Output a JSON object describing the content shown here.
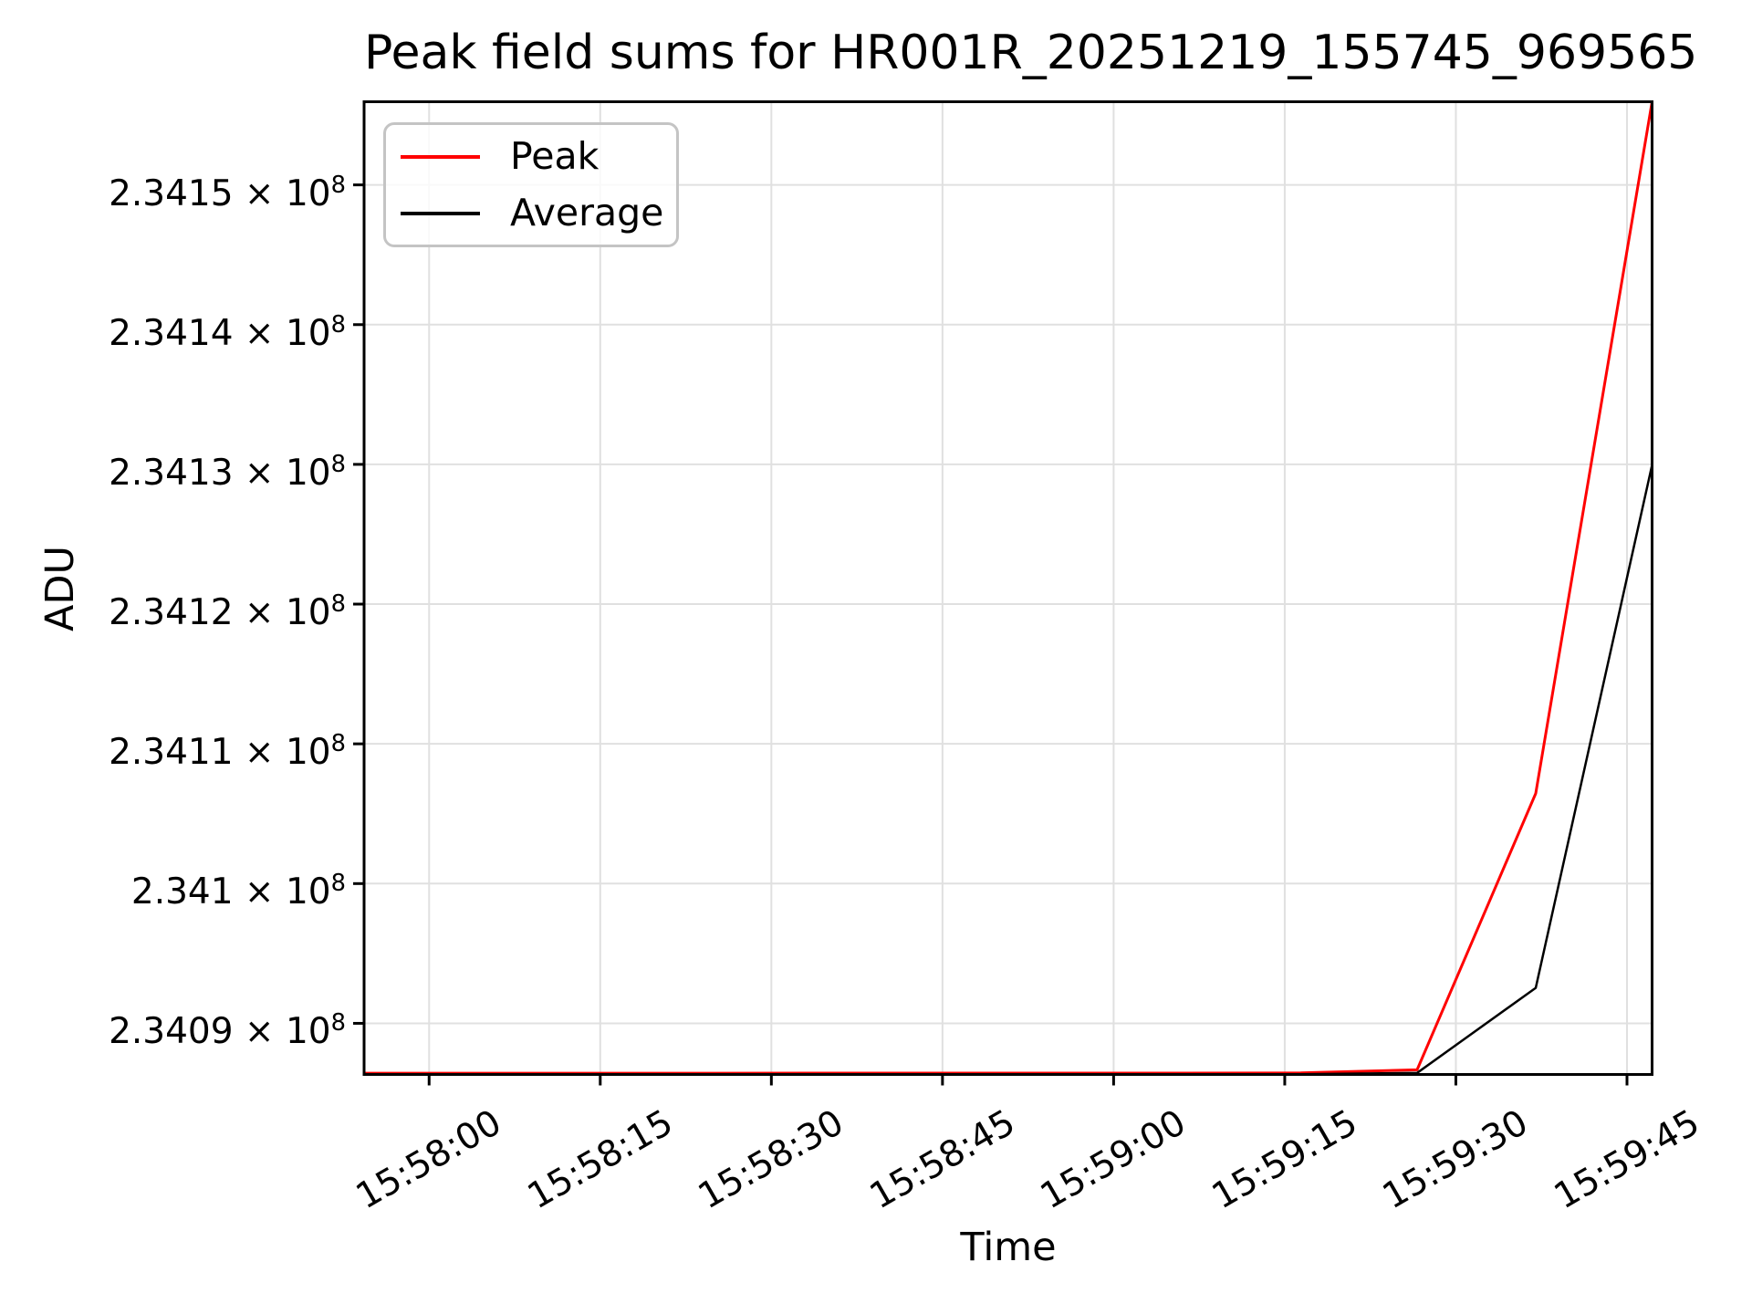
{
  "chart_data": {
    "type": "line",
    "title": "Peak field sums for HR001R_20251219_155745_969565",
    "xlabel": "Time",
    "ylabel": "ADU",
    "grid": true,
    "grid_color": "#e0e0e0",
    "legend_position": "upper-left",
    "x_axis": {
      "note": "seconds relative to 15:58:00",
      "min_s": -5.7,
      "max_s": 107.2,
      "ticks": [
        {
          "s": 0,
          "label": "15:58:00"
        },
        {
          "s": 15,
          "label": "15:58:15"
        },
        {
          "s": 30,
          "label": "15:58:30"
        },
        {
          "s": 45,
          "label": "15:58:45"
        },
        {
          "s": 60,
          "label": "15:59:00"
        },
        {
          "s": 75,
          "label": "15:59:15"
        },
        {
          "s": 90,
          "label": "15:59:30"
        },
        {
          "s": 105,
          "label": "15:59:45"
        }
      ]
    },
    "y_axis": {
      "min": 234086340,
      "max": 234155950,
      "multiply": "×",
      "base": "10",
      "exponent": "8",
      "ticks": [
        {
          "value": 234150000,
          "mantissa": "2.3415"
        },
        {
          "value": 234140000,
          "mantissa": "2.3414"
        },
        {
          "value": 234130000,
          "mantissa": "2.3413"
        },
        {
          "value": 234120000,
          "mantissa": "2.3412"
        },
        {
          "value": 234110000,
          "mantissa": "2.3411"
        },
        {
          "value": 234100000,
          "mantissa": "2.341"
        },
        {
          "value": 234090000,
          "mantissa": "2.3409"
        }
      ]
    },
    "series": [
      {
        "name": "Peak",
        "color": "#ff0000",
        "points": [
          {
            "t": "15:57:54",
            "s": -5.7,
            "adu": 234086430
          },
          {
            "t": "15:58:05",
            "s": 4.6,
            "adu": 234086430
          },
          {
            "t": "15:58:15",
            "s": 14.8,
            "adu": 234086430
          },
          {
            "t": "15:58:25",
            "s": 25.1,
            "adu": 234086430
          },
          {
            "t": "15:58:35",
            "s": 35.4,
            "adu": 234086435
          },
          {
            "t": "15:58:46",
            "s": 45.6,
            "adu": 234086435
          },
          {
            "t": "15:58:56",
            "s": 55.9,
            "adu": 234086440
          },
          {
            "t": "15:59:06",
            "s": 66.1,
            "adu": 234086440
          },
          {
            "t": "15:59:16",
            "s": 76.4,
            "adu": 234086450
          },
          {
            "t": "15:59:27",
            "s": 86.6,
            "adu": 234086670
          },
          {
            "t": "15:59:37",
            "s": 97.0,
            "adu": 234106450
          },
          {
            "t": "15:59:47",
            "s": 107.2,
            "adu": 234155950
          }
        ]
      },
      {
        "name": "Average",
        "color": "#000000",
        "points": [
          {
            "t": "15:57:54",
            "s": -5.7,
            "adu": 234086350
          },
          {
            "t": "15:58:05",
            "s": 4.6,
            "adu": 234086350
          },
          {
            "t": "15:58:15",
            "s": 14.8,
            "adu": 234086350
          },
          {
            "t": "15:58:25",
            "s": 25.1,
            "adu": 234086350
          },
          {
            "t": "15:58:35",
            "s": 35.4,
            "adu": 234086350
          },
          {
            "t": "15:58:46",
            "s": 45.6,
            "adu": 234086355
          },
          {
            "t": "15:58:56",
            "s": 55.9,
            "adu": 234086355
          },
          {
            "t": "15:59:06",
            "s": 66.1,
            "adu": 234086360
          },
          {
            "t": "15:59:16",
            "s": 76.4,
            "adu": 234086360
          },
          {
            "t": "15:59:27",
            "s": 86.6,
            "adu": 234086450
          },
          {
            "t": "15:59:37",
            "s": 97.0,
            "adu": 234092540
          },
          {
            "t": "15:59:47",
            "s": 107.2,
            "adu": 234129960
          }
        ]
      }
    ]
  }
}
